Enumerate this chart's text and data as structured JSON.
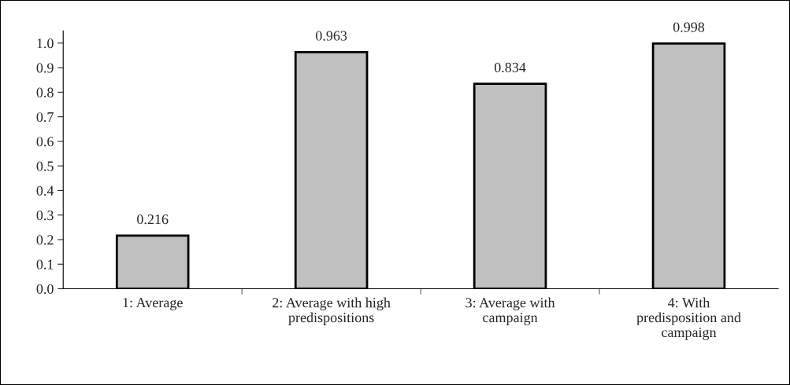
{
  "chart_data": {
    "type": "bar",
    "categories": [
      "1: Average",
      "2: Average with high\npredispositions",
      "3: Average with\ncampaign",
      "4: With\npredisposition and\ncampaign"
    ],
    "values": [
      0.216,
      0.963,
      0.834,
      0.998
    ],
    "color": "#c0c0c0",
    "ylim": [
      0,
      1.05
    ],
    "yticks": [
      {
        "value": 0,
        "label": "0.0"
      },
      {
        "value": 0.1,
        "label": "0.1"
      },
      {
        "value": 0.2,
        "label": "0.2"
      },
      {
        "value": 0.3,
        "label": "0.3"
      },
      {
        "value": 0.4,
        "label": "0.4"
      },
      {
        "value": 0.5,
        "label": "0.5"
      },
      {
        "value": 0.6,
        "label": "0.6"
      },
      {
        "value": 0.7,
        "label": "0.7"
      },
      {
        "value": 0.8,
        "label": "0.8"
      },
      {
        "value": 0.9,
        "label": "0.9"
      },
      {
        "value": 1.0,
        "label": "1.0"
      }
    ],
    "data_labels": true,
    "grid": false,
    "legend": false
  }
}
